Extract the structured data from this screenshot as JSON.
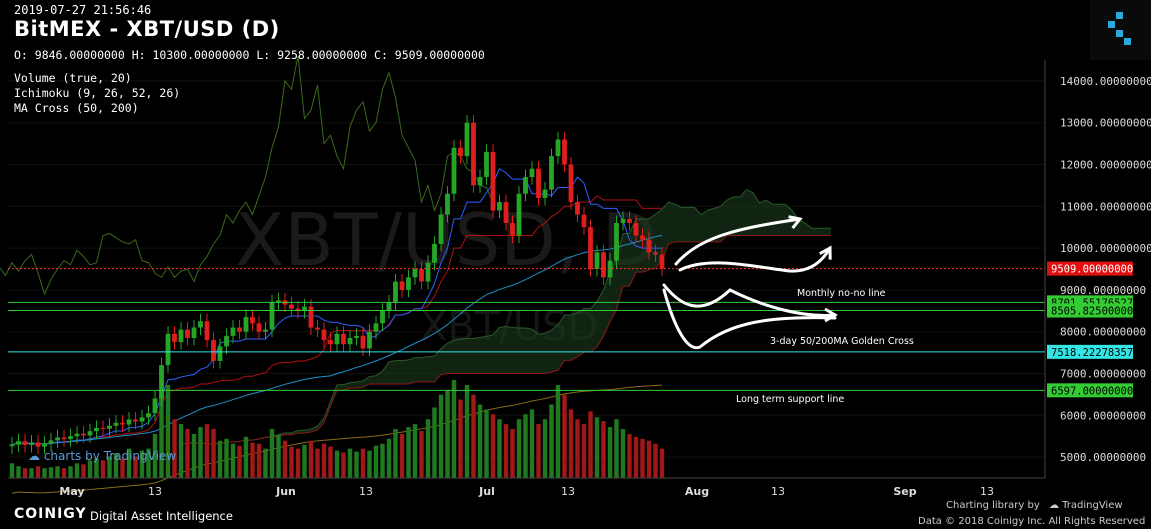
{
  "header": {
    "timestamp": "2019-07-27 21:56:46",
    "title": "BitMEX - XBT/USD (D)",
    "ohlc": "O: 9846.00000000 H: 10300.00000000 L: 9258.00000000 C: 9509.00000000",
    "indicators": [
      "Volume (true, 20)",
      "Ichimoku (9, 26, 52, 26)",
      "MA Cross (50, 200)"
    ]
  },
  "watermark": {
    "main": "XBT/USD, D",
    "sub": "XBT/USD",
    "tv": "charts by TradingView"
  },
  "colors": {
    "background": "#000000",
    "up": "#26a626",
    "down": "#e01e1e",
    "ma50": "#1e90c8",
    "ma200": "#2e8b57",
    "ichimoku_span": "#8b1a1a",
    "cloud": "#1c3a1c",
    "hline": "#33cc33",
    "price_line": "#ff3030"
  },
  "chart_data": {
    "type": "candlestick",
    "ylim": [
      4500,
      14500
    ],
    "y_ticks": [
      5000,
      6000,
      7000,
      8000,
      9000,
      10000,
      11000,
      12000,
      13000,
      14000
    ],
    "y_tick_labels": [
      "5000.00000000",
      "6000.00000000",
      "7000.00000000",
      "8000.00000000",
      "9000.00000000",
      "10000.00000000",
      "11000.00000000",
      "12000.00000000",
      "13000.00000000",
      "14000.00000000"
    ],
    "x_labels": [
      "May",
      "13",
      "Jun",
      "13",
      "Jul",
      "13",
      "Aug",
      "13",
      "Sep",
      "13"
    ],
    "current_price": 9509,
    "current_price_label": "9509.00000000",
    "horizontal_lines": [
      {
        "value": 8701.55176527,
        "label": "8701.55176527",
        "color": "#33cc33",
        "note": "Monthly no-no line"
      },
      {
        "value": 8505.825,
        "label": "8505.82500000",
        "color": "#33cc33",
        "note": "3-day 50/200MA Golden Cross"
      },
      {
        "value": 7518.22278357,
        "label": "7518.22278357",
        "color": "#33e6e6",
        "note": ""
      },
      {
        "value": 6597,
        "label": "6597.00000000",
        "color": "#33cc33",
        "note": "Long term support line"
      }
    ],
    "candles_close": [
      5300,
      5380,
      5290,
      5350,
      5250,
      5320,
      5400,
      5470,
      5430,
      5500,
      5560,
      5520,
      5620,
      5700,
      5680,
      5750,
      5820,
      5780,
      5900,
      5850,
      5950,
      6050,
      6400,
      7200,
      7950,
      7750,
      8050,
      7850,
      8100,
      8250,
      7800,
      7300,
      7650,
      7900,
      8100,
      8000,
      8350,
      8200,
      8000,
      8050,
      8700,
      8750,
      8650,
      8550,
      8500,
      8600,
      8100,
      8050,
      7800,
      7700,
      7950,
      7700,
      7850,
      7900,
      7600,
      8000,
      8200,
      8500,
      8700,
      9200,
      9000,
      9300,
      9500,
      9200,
      9650,
      10100,
      10800,
      11300,
      12400,
      12200,
      13000,
      11500,
      11700,
      12300,
      10900,
      11100,
      10600,
      10300,
      11300,
      11700,
      11900,
      11200,
      11400,
      12200,
      12600,
      12000,
      11100,
      10800,
      10500,
      9500,
      9900,
      9300,
      9700,
      10600,
      10700,
      10600,
      10300,
      10200,
      9900,
      9846,
      9509
    ],
    "volume_relative": [
      0.15,
      0.12,
      0.1,
      0.1,
      0.12,
      0.1,
      0.11,
      0.12,
      0.1,
      0.12,
      0.15,
      0.14,
      0.18,
      0.2,
      0.18,
      0.22,
      0.25,
      0.2,
      0.3,
      0.22,
      0.28,
      0.3,
      0.45,
      0.85,
      0.95,
      0.6,
      0.55,
      0.5,
      0.45,
      0.52,
      0.55,
      0.5,
      0.38,
      0.4,
      0.35,
      0.33,
      0.42,
      0.36,
      0.35,
      0.3,
      0.5,
      0.44,
      0.38,
      0.32,
      0.3,
      0.34,
      0.38,
      0.3,
      0.35,
      0.32,
      0.28,
      0.26,
      0.3,
      0.27,
      0.3,
      0.28,
      0.33,
      0.35,
      0.4,
      0.5,
      0.45,
      0.52,
      0.55,
      0.48,
      0.6,
      0.72,
      0.85,
      0.9,
      1.0,
      0.8,
      0.95,
      0.85,
      0.75,
      0.7,
      0.65,
      0.6,
      0.55,
      0.5,
      0.6,
      0.65,
      0.7,
      0.55,
      0.6,
      0.75,
      0.95,
      0.85,
      0.7,
      0.6,
      0.55,
      0.68,
      0.62,
      0.58,
      0.52,
      0.6,
      0.5,
      0.45,
      0.42,
      0.4,
      0.38,
      0.35,
      0.3
    ]
  },
  "annotations": {
    "monthly": "Monthly no-no line",
    "golden": "3-day 50/200MA Golden Cross",
    "support": "Long term support line"
  },
  "footer": {
    "brand": "COINIGY",
    "tagline": "Digital Asset Intelligence",
    "charting": "Charting library by",
    "tv": "TradingView",
    "copyright": "Data © 2018 Coinigy Inc. All Rights Reserved"
  }
}
